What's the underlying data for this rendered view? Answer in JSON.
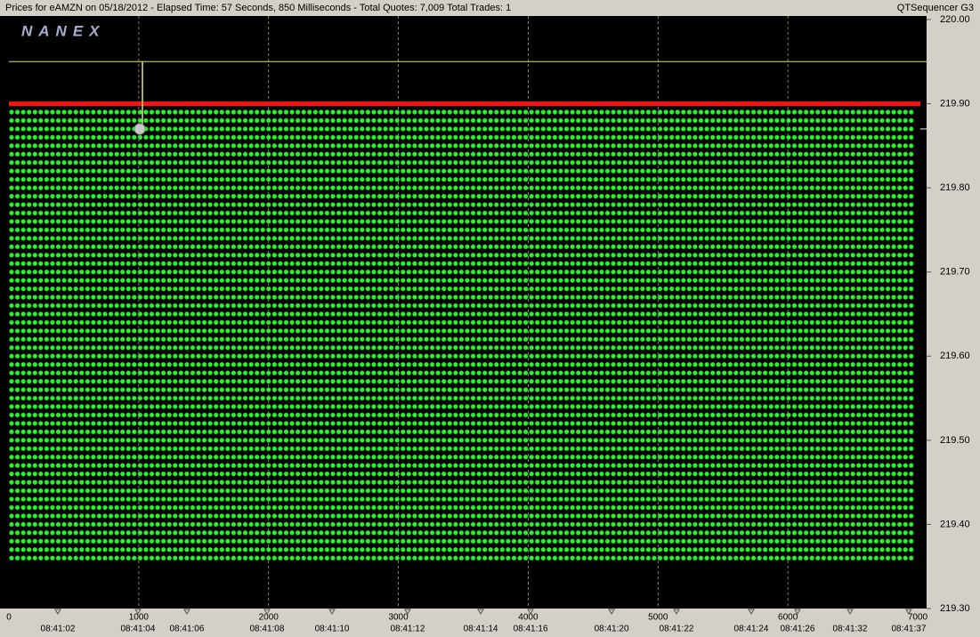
{
  "header": {
    "title": "Prices for  eAMZN  on  05/18/2012  -  Elapsed Time: 57 Seconds, 850 Milliseconds  -  Total Quotes: 7,009  Total Trades: 1",
    "app_name": "QTSequencer G3",
    "logo": "NANEX"
  },
  "chart_data": {
    "type": "scatter",
    "xlim": [
      0,
      7000
    ],
    "xticks": [
      0,
      1000,
      2000,
      3000,
      4000,
      5000,
      6000,
      7000
    ],
    "time_ticks": [
      {
        "value": 377,
        "label": "08:41:02"
      },
      {
        "value": 994,
        "label": "08:41:04"
      },
      {
        "value": 1371,
        "label": "08:41:06"
      },
      {
        "value": 1988,
        "label": "08:41:08"
      },
      {
        "value": 2489,
        "label": "08:41:10"
      },
      {
        "value": 3071,
        "label": "08:41:12"
      },
      {
        "value": 3634,
        "label": "08:41:14"
      },
      {
        "value": 4018,
        "label": "08:41:16"
      },
      {
        "value": 4642,
        "label": "08:41:20"
      },
      {
        "value": 5142,
        "label": "08:41:22"
      },
      {
        "value": 5718,
        "label": "08:41:24"
      },
      {
        "value": 6074,
        "label": "08:41:26"
      },
      {
        "value": 6479,
        "label": "08:41:32"
      },
      {
        "value": 6931,
        "label": "08:41:37"
      }
    ],
    "ylim": [
      219.3,
      220.0
    ],
    "yticks": [
      {
        "value": 219.3,
        "label": "219.30"
      },
      {
        "value": 219.4,
        "label": "219.40"
      },
      {
        "value": 219.5,
        "label": "219.50"
      },
      {
        "value": 219.6,
        "label": "219.60"
      },
      {
        "value": 219.7,
        "label": "219.70"
      },
      {
        "value": 219.8,
        "label": "219.80"
      },
      {
        "value": 219.9,
        "label": "219.90"
      },
      {
        "value": 220,
        "label": "220.00"
      }
    ],
    "grid": true,
    "quotes": {
      "color": "#2cf22c",
      "x": [
        0,
        45,
        90,
        135,
        180,
        225,
        270,
        315,
        360,
        405,
        450,
        495,
        540,
        585,
        630,
        675,
        720,
        765,
        810,
        855,
        900,
        945,
        990,
        1035,
        1080,
        1125,
        1170,
        1215,
        1260,
        1305,
        1350,
        1395,
        1440,
        1485,
        1530,
        1575,
        1620,
        1665,
        1710,
        1755,
        1800,
        1845,
        1890,
        1935,
        1980,
        2025,
        2070,
        2115,
        2160,
        2205,
        2250,
        2295,
        2340,
        2385,
        2430,
        2475,
        2520,
        2565,
        2610,
        2655,
        2700,
        2745,
        2790,
        2835,
        2880,
        2925,
        2970,
        3015,
        3060,
        3105,
        3150,
        3195,
        3240,
        3285,
        3330,
        3375,
        3420,
        3465,
        3510,
        3555,
        3600,
        3645,
        3690,
        3735,
        3780,
        3825,
        3870,
        3915,
        3960,
        4005,
        4050,
        4095,
        4140,
        4185,
        4230,
        4275,
        4320,
        4365,
        4410,
        4455,
        4500,
        4545,
        4590,
        4635,
        4680,
        4725,
        4770,
        4815,
        4860,
        4905,
        4950,
        4995,
        5040,
        5085,
        5130,
        5175,
        5220,
        5265,
        5310,
        5355,
        5400,
        5445,
        5490,
        5535,
        5580,
        5625,
        5670,
        5715,
        5760,
        5805,
        5850,
        5895,
        5940,
        5985,
        6030,
        6075,
        6120,
        6165,
        6210,
        6255,
        6300,
        6345,
        6390,
        6435,
        6480,
        6525,
        6570,
        6615,
        6660,
        6705,
        6750,
        6795,
        6840,
        6885,
        6930
      ],
      "levels": [
        219.36,
        219.37,
        219.38,
        219.39,
        219.4,
        219.41,
        219.42,
        219.43,
        219.44,
        219.45,
        219.46,
        219.47,
        219.48,
        219.49,
        219.5,
        219.51,
        219.52,
        219.53,
        219.54,
        219.55,
        219.56,
        219.57,
        219.58,
        219.59,
        219.6,
        219.61,
        219.62,
        219.63,
        219.64,
        219.65,
        219.66,
        219.67,
        219.68,
        219.69,
        219.7,
        219.71,
        219.72,
        219.73,
        219.74,
        219.75,
        219.76,
        219.77,
        219.78,
        219.79,
        219.8,
        219.81,
        219.82,
        219.83,
        219.84,
        219.85,
        219.86,
        219.87,
        219.88,
        219.89
      ]
    },
    "offer_line": {
      "color": "#ff1010",
      "value": 219.9
    },
    "upper_line": {
      "color": "#e8e07a",
      "value": 219.95
    },
    "trade": {
      "color": "#c8c8c8",
      "x": 1008,
      "value": 219.87
    }
  }
}
